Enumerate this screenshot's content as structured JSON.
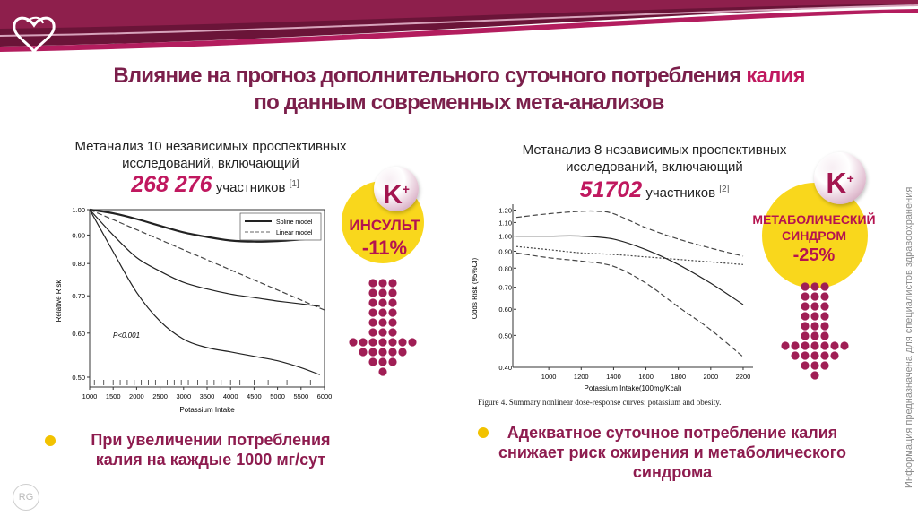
{
  "title": {
    "line1_main": "Влияние на прогноз дополнительного суточного потребления ",
    "line1_accent": "калия",
    "line2": "по данным современных мета-анализов"
  },
  "left": {
    "subtitle_line1": "Метанализ 10 независимых проспективных",
    "subtitle_line2": "исследований, включающий",
    "count": "268 276",
    "participants": "участников",
    "ref": "[1]",
    "badge_letter": "K",
    "badge_sup": "+",
    "effect_label": "ИНСУЛЬТ",
    "effect_value": "-11%",
    "bullet": "При увеличении потребления калия на каждые 1000 мг/сут"
  },
  "right": {
    "subtitle_line1": "Метанализ 8 независимых проспективных",
    "subtitle_line2": "исследований, включающий",
    "count": "51702",
    "participants": "участников",
    "ref": "[2]",
    "badge_letter": "K",
    "badge_sup": "+",
    "effect_label1": "МЕТАБОЛИЧЕСКИЙ",
    "effect_label2": "СИНДРОМ",
    "effect_value": "-25%",
    "caption": "Figure 4. Summary nonlinear dose-response curves: potassium and obesity.",
    "bullet": "Адекватное суточное потребление калия снижает риск ожирения и метаболического синдрома"
  },
  "side_note": "Информация предназначена для специалистов здравоохранения",
  "logo_text": "RG",
  "colors": {
    "brand": "#7b1f4b",
    "accent": "#c0185f",
    "dots": "#a01e55",
    "yellow": "#f9d71c"
  },
  "chart_data": [
    {
      "type": "line",
      "xlabel": "Potassium Intake",
      "ylabel": "Relative Risk",
      "log_y": true,
      "xlim": [
        1000,
        6000
      ],
      "ylim": [
        0.48,
        1.0
      ],
      "x_ticks": [
        1000,
        1500,
        2000,
        2500,
        3000,
        3500,
        4000,
        4500,
        5000,
        5500,
        6000
      ],
      "y_ticks": [
        1.0,
        0.9,
        0.8,
        0.7,
        0.6,
        0.5
      ],
      "y_tick_labels": [
        "1.00",
        "0.90",
        "0.80",
        "0.70",
        "0.60",
        "0.50"
      ],
      "annotation": "P<0.001",
      "legend": [
        "Spline model",
        "Linear model"
      ],
      "legend_position": "top-right",
      "rug_x": [
        1100,
        1300,
        1500,
        1650,
        1800,
        1950,
        2100,
        2250,
        2400,
        2500,
        2650,
        2800,
        2950,
        3100,
        3300,
        3500,
        3650,
        3800,
        4000,
        4200,
        4500,
        4800,
        5200,
        5700
      ],
      "series": [
        {
          "name": "Spline model",
          "style": "solid",
          "x": [
            1000,
            1500,
            2000,
            2500,
            3000,
            3500,
            4000,
            4500,
            5000,
            5500,
            5900
          ],
          "y": [
            1.0,
            0.985,
            0.962,
            0.935,
            0.91,
            0.893,
            0.88,
            0.876,
            0.878,
            0.884,
            0.89
          ]
        },
        {
          "name": "Linear model",
          "style": "dashed",
          "x": [
            1000,
            6000
          ],
          "y": [
            1.0,
            0.66
          ]
        },
        {
          "style": "solid",
          "x": [
            1000,
            1500,
            2000,
            2500,
            3000,
            3500,
            4000,
            4500,
            5000,
            5500,
            5900
          ],
          "y": [
            1.0,
            0.9,
            0.82,
            0.775,
            0.74,
            0.72,
            0.705,
            0.695,
            0.685,
            0.677,
            0.67
          ]
        },
        {
          "style": "solid",
          "x": [
            1000,
            1500,
            2000,
            2500,
            3000,
            3500,
            4000,
            4500,
            5000,
            5500,
            5900
          ],
          "y": [
            1.0,
            0.84,
            0.71,
            0.63,
            0.585,
            0.565,
            0.555,
            0.545,
            0.535,
            0.52,
            0.505
          ]
        }
      ]
    },
    {
      "type": "line",
      "xlabel": "Potassium Intake(100mg/Kcal)",
      "ylabel": "Odds Risk (95%CI)",
      "log_y": true,
      "xlim": [
        800,
        2250
      ],
      "ylim": [
        0.4,
        1.25
      ],
      "x_ticks": [
        1000,
        1200,
        1400,
        1600,
        1800,
        2000,
        2200
      ],
      "y_ticks": [
        1.2,
        1.1,
        1.0,
        0.9,
        0.8,
        0.7,
        0.6,
        0.5,
        0.4
      ],
      "y_tick_labels": [
        "1.20",
        "1.10",
        "1.00",
        "0.90",
        "0.80",
        "0.70",
        "0.60",
        "0.50",
        "0.40"
      ],
      "series": [
        {
          "style": "dashed",
          "x": [
            800,
            1000,
            1200,
            1300,
            1400,
            1600,
            1800,
            2000,
            2200
          ],
          "y": [
            1.14,
            1.17,
            1.19,
            1.19,
            1.17,
            1.06,
            0.98,
            0.92,
            0.87
          ]
        },
        {
          "style": "solid",
          "x": [
            800,
            1000,
            1200,
            1400,
            1600,
            1800,
            2000,
            2200
          ],
          "y": [
            1.0,
            1.0,
            1.0,
            0.98,
            0.91,
            0.82,
            0.72,
            0.62
          ]
        },
        {
          "style": "dotted",
          "x": [
            800,
            1000,
            1200,
            1400,
            1600,
            1800,
            2000,
            2200
          ],
          "y": [
            0.93,
            0.91,
            0.89,
            0.88,
            0.865,
            0.85,
            0.835,
            0.82
          ]
        },
        {
          "style": "dashed",
          "x": [
            800,
            1000,
            1200,
            1400,
            1600,
            1800,
            2000,
            2200
          ],
          "y": [
            0.89,
            0.86,
            0.84,
            0.81,
            0.72,
            0.61,
            0.52,
            0.43
          ]
        }
      ]
    }
  ]
}
